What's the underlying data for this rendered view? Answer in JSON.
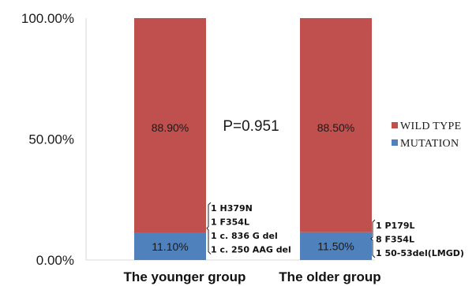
{
  "chart_data": {
    "type": "bar",
    "stacked": true,
    "categories": [
      "The younger group",
      "The older group"
    ],
    "series": [
      {
        "name": "MUTATION",
        "color": "#4F81BD",
        "values": [
          11.1,
          11.5
        ],
        "labels": [
          "11.10%",
          "11.50%"
        ]
      },
      {
        "name": "WILD TYPE",
        "color": "#C0504D",
        "values": [
          88.9,
          88.5
        ],
        "labels": [
          "88.90%",
          "88.50%"
        ]
      }
    ],
    "yticks": [
      "0.00%",
      "50.00%",
      "100.00%"
    ],
    "ylim": [
      0,
      100
    ],
    "legend_position": "right",
    "legend_order": [
      "WILD TYPE",
      "MUTATION"
    ],
    "annotation": "P=0.951",
    "group_details": [
      [
        "1 H379N",
        "1 F354L",
        "1 c. 836  G del",
        "1 c. 250 AAG del"
      ],
      [
        "1 P179L",
        "8 F354L",
        "1 50-53del(LMGD)"
      ]
    ],
    "grid": false
  }
}
